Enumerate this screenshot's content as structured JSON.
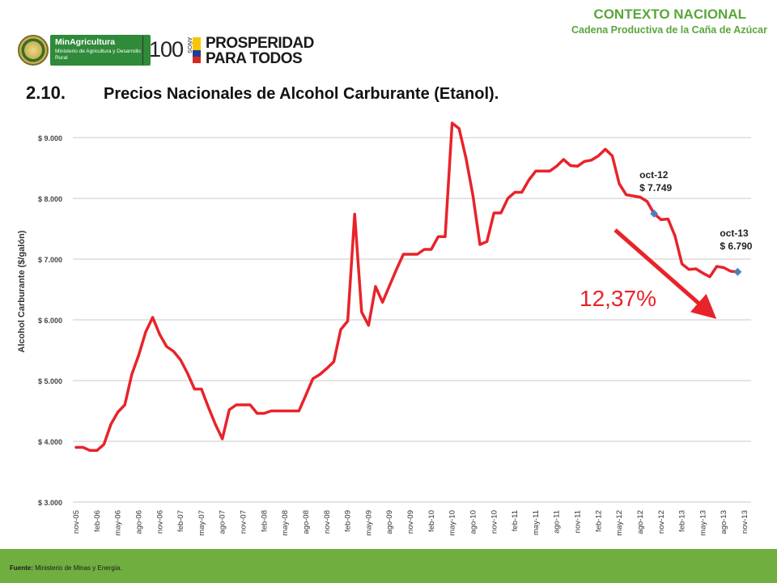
{
  "header": {
    "context_title": "CONTEXTO NACIONAL",
    "context_subtitle": "Cadena Productiva de la Caña de Azúcar",
    "logo_ministry_name": "MinAgricultura",
    "logo_ministry_full": "Ministerio de Agricultura y Desarrollo Rural",
    "logo_centenary": "100",
    "logo_centenary_years": "AÑOS",
    "logo_slogan_line1": "PROSPERIDAD",
    "logo_slogan_line2": "PARA TODOS"
  },
  "section": {
    "number": "2.10.",
    "title": "Precios Nacionales de Alcohol Carburante (Etanol)."
  },
  "footer": {
    "source_label": "Fuente:",
    "source_text": "Ministerio de Minas y Energía."
  },
  "colors": {
    "accent_green": "#5aa63a",
    "footer_green": "#6fae3f",
    "series_red": "#e8232a",
    "marker_blue": "#4a7fc1"
  },
  "chart_data": {
    "type": "line",
    "title": "",
    "xlabel": "",
    "ylabel": "Alcohol Carburante ($/galón)",
    "ylim": [
      3000,
      9000
    ],
    "grid": true,
    "legend": "none",
    "y_ticks": [
      3000,
      4000,
      5000,
      6000,
      7000,
      8000,
      9000
    ],
    "y_tick_labels": [
      "$ 3.000",
      "$ 4.000",
      "$ 5.000",
      "$ 6.000",
      "$ 7.000",
      "$ 8.000",
      "$ 9.000"
    ],
    "x_tick_labels": [
      "nov-05",
      "feb-06",
      "may-06",
      "ago-06",
      "nov-06",
      "feb-07",
      "may-07",
      "ago-07",
      "nov-07",
      "feb-08",
      "may-08",
      "ago-08",
      "nov-08",
      "feb-09",
      "may-09",
      "ago-09",
      "nov-09",
      "feb-10",
      "may-10",
      "ago-10",
      "nov-10",
      "feb-11",
      "may-11",
      "ago-11",
      "nov-11",
      "feb-12",
      "may-12",
      "ago-12",
      "nov-12",
      "feb-13",
      "may-13",
      "ago-13",
      "nov-13"
    ],
    "x_start_month": "nov-05",
    "series": [
      {
        "name": "",
        "values": [
          3900,
          3900,
          3850,
          3850,
          3950,
          4280,
          4480,
          4600,
          5100,
          5420,
          5800,
          6040,
          5760,
          5560,
          5480,
          5340,
          5120,
          4860,
          4860,
          4560,
          4280,
          4040,
          4520,
          4600,
          4600,
          4600,
          4460,
          4460,
          4500,
          4500,
          4500,
          4500,
          4500,
          4760,
          5030,
          5100,
          5200,
          5310,
          5840,
          5980,
          7740,
          6130,
          5910,
          6550,
          6290,
          6560,
          6830,
          7080,
          7080,
          7080,
          7160,
          7160,
          7370,
          7370,
          9240,
          9150,
          8660,
          8040,
          7240,
          7290,
          7760,
          7760,
          8000,
          8100,
          8100,
          8300,
          8450,
          8450,
          8450,
          8530,
          8640,
          8540,
          8530,
          8610,
          8630,
          8700,
          8810,
          8700,
          8240,
          8060,
          8040,
          8020,
          7950,
          7749,
          7650,
          7660,
          7380,
          6920,
          6830,
          6840,
          6770,
          6710,
          6880,
          6860,
          6800,
          6790
        ]
      }
    ],
    "annotations": [
      {
        "label": "oct-12",
        "value_label": "$ 7.749",
        "month": "oct-12",
        "value": 7749
      },
      {
        "label": "oct-13",
        "value_label": "$ 6.790",
        "month": "oct-13",
        "value": 6790
      }
    ],
    "change_label": "12,37%"
  }
}
